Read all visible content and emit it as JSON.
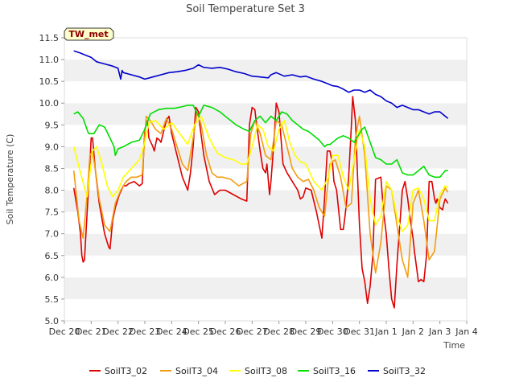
{
  "chart_data": {
    "type": "line",
    "title": "Soil Temperature Set 3",
    "xlabel": "Time",
    "ylabel": "Soil Temperature (C)",
    "tag": "TW_met",
    "ylim": [
      5.0,
      11.5
    ],
    "yticks": [
      "5.0",
      "5.5",
      "6.0",
      "6.5",
      "7.0",
      "7.5",
      "8.0",
      "8.5",
      "9.0",
      "9.5",
      "10.0",
      "10.5",
      "11.0",
      "11.5"
    ],
    "xlim": [
      0,
      15
    ],
    "xtick_labels": [
      "Dec 20",
      "Dec 21",
      "Dec 22",
      "Dec 23",
      "Dec 24",
      "Dec 25",
      "Dec 26",
      "Dec 27",
      "Dec 28",
      "Dec 29",
      "Dec 30",
      "Dec 31",
      "Jan 1",
      "Jan 2",
      "Jan 3",
      "Jan 4"
    ],
    "grid": "horizontal bands",
    "legend_position": "bottom",
    "series": [
      {
        "name": "SoilT3_02",
        "color": "#dd0000",
        "x": [
          0.35,
          0.5,
          0.6,
          0.65,
          0.7,
          0.75,
          0.85,
          0.95,
          1.0,
          1.05,
          1.15,
          1.3,
          1.5,
          1.6,
          1.65,
          1.7,
          1.8,
          1.9,
          2.05,
          2.2,
          2.3,
          2.4,
          2.6,
          2.8,
          2.9,
          3.0,
          3.1,
          3.15,
          3.3,
          3.35,
          3.45,
          3.55,
          3.6,
          3.8,
          3.9,
          4.0,
          4.2,
          4.4,
          4.6,
          4.7,
          4.8,
          4.9,
          5.0,
          5.05,
          5.2,
          5.4,
          5.6,
          5.8,
          5.9,
          6.0,
          6.3,
          6.6,
          6.8,
          6.9,
          7.0,
          7.1,
          7.15,
          7.3,
          7.4,
          7.5,
          7.55,
          7.65,
          7.7,
          7.8,
          7.9,
          8.0,
          8.1,
          8.15,
          8.3,
          8.5,
          8.7,
          8.8,
          8.9,
          9.0,
          9.2,
          9.4,
          9.6,
          9.7,
          9.8,
          9.9,
          10.0,
          10.05,
          10.15,
          10.3,
          10.4,
          10.5,
          10.6,
          10.7,
          10.75,
          10.85,
          10.95,
          11.0,
          11.1,
          11.2,
          11.3,
          11.4,
          11.5,
          11.6,
          11.8,
          11.9,
          12.0,
          12.1,
          12.2,
          12.3,
          12.4,
          12.6,
          12.7,
          12.75,
          12.8,
          12.9,
          13.0,
          13.05,
          13.2,
          13.3,
          13.4,
          13.5,
          13.6,
          13.7,
          13.8,
          13.85,
          13.9,
          14.0,
          14.1,
          14.15,
          14.2,
          14.3
        ],
        "values": [
          8.05,
          7.5,
          7.0,
          6.5,
          6.35,
          6.4,
          7.5,
          8.6,
          9.2,
          9.2,
          8.5,
          7.7,
          7.0,
          6.8,
          6.7,
          6.65,
          7.3,
          7.6,
          7.9,
          8.1,
          8.1,
          8.15,
          8.2,
          8.1,
          8.15,
          9.4,
          9.6,
          9.2,
          9.0,
          8.9,
          9.2,
          9.15,
          9.1,
          9.6,
          9.7,
          9.3,
          8.8,
          8.3,
          8.0,
          8.4,
          9.0,
          9.9,
          9.8,
          9.5,
          8.8,
          8.2,
          7.9,
          8.0,
          8.0,
          8.0,
          7.9,
          7.8,
          7.75,
          9.5,
          9.9,
          9.85,
          9.6,
          8.9,
          8.5,
          8.4,
          8.6,
          7.9,
          8.2,
          9.0,
          10.0,
          9.8,
          9.0,
          8.6,
          8.4,
          8.2,
          8.0,
          7.8,
          7.85,
          8.05,
          8.0,
          7.5,
          6.9,
          7.8,
          8.9,
          8.9,
          8.6,
          8.2,
          8.0,
          7.1,
          7.1,
          7.6,
          8.3,
          9.5,
          10.15,
          9.6,
          8.0,
          7.2,
          6.2,
          5.9,
          5.4,
          5.8,
          6.5,
          8.25,
          8.3,
          7.5,
          7.0,
          6.2,
          5.5,
          5.3,
          6.3,
          8.0,
          8.2,
          8.0,
          7.8,
          7.3,
          6.9,
          6.6,
          5.9,
          5.95,
          5.9,
          6.5,
          8.2,
          8.2,
          7.8,
          7.7,
          7.8,
          7.6,
          7.55,
          7.7,
          7.8,
          7.7
        ]
      },
      {
        "name": "SoilT3_04",
        "color": "#f39c12",
        "x": [
          0.35,
          0.55,
          0.7,
          0.85,
          0.95,
          1.05,
          1.15,
          1.3,
          1.5,
          1.7,
          1.9,
          2.1,
          2.3,
          2.5,
          2.7,
          2.9,
          3.05,
          3.2,
          3.4,
          3.6,
          3.8,
          4.0,
          4.2,
          4.4,
          4.6,
          4.8,
          4.95,
          5.1,
          5.3,
          5.5,
          5.7,
          5.9,
          6.2,
          6.5,
          6.8,
          6.95,
          7.1,
          7.3,
          7.5,
          7.7,
          7.9,
          8.1,
          8.3,
          8.5,
          8.7,
          8.9,
          9.1,
          9.3,
          9.5,
          9.7,
          9.9,
          10.1,
          10.3,
          10.5,
          10.7,
          10.85,
          11.0,
          11.2,
          11.4,
          11.6,
          11.8,
          12.0,
          12.2,
          12.4,
          12.6,
          12.8,
          13.0,
          13.2,
          13.4,
          13.6,
          13.8,
          14.0,
          14.2,
          14.3
        ],
        "values": [
          8.45,
          7.3,
          6.9,
          7.9,
          8.8,
          8.9,
          8.5,
          7.8,
          7.2,
          7.05,
          7.7,
          8.0,
          8.2,
          8.3,
          8.3,
          8.35,
          9.7,
          9.6,
          9.4,
          9.3,
          9.65,
          9.4,
          9.0,
          8.6,
          8.45,
          9.2,
          9.8,
          9.5,
          8.8,
          8.4,
          8.3,
          8.3,
          8.25,
          8.1,
          8.2,
          9.3,
          9.6,
          9.3,
          8.8,
          8.7,
          9.6,
          9.5,
          9.0,
          8.5,
          8.3,
          8.2,
          8.25,
          8.0,
          7.6,
          7.4,
          8.6,
          8.7,
          8.3,
          7.6,
          7.7,
          9.2,
          9.7,
          8.8,
          7.0,
          6.1,
          6.8,
          8.1,
          8.0,
          7.2,
          6.4,
          6.0,
          7.7,
          8.0,
          7.3,
          6.4,
          6.6,
          7.8,
          8.05,
          7.95
        ]
      },
      {
        "name": "SoilT3_08",
        "color": "#ffff00",
        "x": [
          0.35,
          0.6,
          0.85,
          1.05,
          1.2,
          1.4,
          1.6,
          1.8,
          2.0,
          2.2,
          2.5,
          2.8,
          3.0,
          3.15,
          3.4,
          3.7,
          4.0,
          4.3,
          4.6,
          4.85,
          5.1,
          5.4,
          5.7,
          6.0,
          6.3,
          6.6,
          6.8,
          7.0,
          7.2,
          7.4,
          7.6,
          7.8,
          8.0,
          8.2,
          8.4,
          8.6,
          8.8,
          9.0,
          9.3,
          9.6,
          9.85,
          10.0,
          10.2,
          10.4,
          10.6,
          10.8,
          11.0,
          11.2,
          11.4,
          11.6,
          11.8,
          12.0,
          12.2,
          12.4,
          12.6,
          12.8,
          13.0,
          13.2,
          13.4,
          13.6,
          13.8,
          14.0,
          14.2,
          14.3
        ],
        "values": [
          9.0,
          8.4,
          7.85,
          8.9,
          9.0,
          8.6,
          8.1,
          7.85,
          8.0,
          8.3,
          8.5,
          8.7,
          9.1,
          9.55,
          9.6,
          9.4,
          9.55,
          9.3,
          9.05,
          9.5,
          9.7,
          9.2,
          8.85,
          8.75,
          8.7,
          8.6,
          8.6,
          9.0,
          9.5,
          9.4,
          9.0,
          8.9,
          9.4,
          9.6,
          9.1,
          8.8,
          8.65,
          8.6,
          8.2,
          8.0,
          8.3,
          8.8,
          8.8,
          8.3,
          8.0,
          8.7,
          9.4,
          9.0,
          7.8,
          7.2,
          7.4,
          8.2,
          8.0,
          7.4,
          7.05,
          7.2,
          8.0,
          8.05,
          7.8,
          7.3,
          7.3,
          7.9,
          8.1,
          8.05
        ]
      },
      {
        "name": "SoilT3_16",
        "color": "#00dd00",
        "x": [
          0.35,
          0.5,
          0.7,
          0.9,
          1.1,
          1.3,
          1.5,
          1.7,
          1.85,
          1.9,
          2.0,
          2.2,
          2.5,
          2.8,
          3.0,
          3.2,
          3.5,
          3.8,
          4.1,
          4.4,
          4.6,
          4.8,
          5.0,
          5.2,
          5.5,
          5.8,
          6.1,
          6.4,
          6.7,
          6.9,
          7.1,
          7.3,
          7.5,
          7.7,
          7.9,
          8.1,
          8.3,
          8.5,
          8.7,
          8.9,
          9.1,
          9.3,
          9.5,
          9.7,
          9.8,
          9.9,
          10.0,
          10.2,
          10.4,
          10.6,
          10.8,
          11.0,
          11.1,
          11.2,
          11.4,
          11.6,
          11.8,
          12.0,
          12.2,
          12.4,
          12.6,
          12.8,
          13.0,
          13.2,
          13.4,
          13.6,
          13.8,
          14.0,
          14.2,
          14.3
        ],
        "values": [
          9.75,
          9.8,
          9.65,
          9.3,
          9.3,
          9.5,
          9.45,
          9.2,
          9.0,
          8.8,
          8.95,
          9.0,
          9.1,
          9.15,
          9.4,
          9.75,
          9.85,
          9.88,
          9.88,
          9.92,
          9.95,
          9.95,
          9.7,
          9.95,
          9.9,
          9.8,
          9.65,
          9.5,
          9.4,
          9.35,
          9.6,
          9.7,
          9.55,
          9.7,
          9.6,
          9.8,
          9.75,
          9.6,
          9.5,
          9.4,
          9.35,
          9.25,
          9.15,
          9.0,
          9.05,
          9.05,
          9.1,
          9.2,
          9.25,
          9.2,
          9.1,
          9.3,
          9.4,
          9.45,
          9.1,
          8.75,
          8.7,
          8.6,
          8.6,
          8.7,
          8.4,
          8.35,
          8.35,
          8.45,
          8.55,
          8.35,
          8.3,
          8.3,
          8.45,
          8.45
        ]
      },
      {
        "name": "SoilT3_32",
        "color": "#0000cc",
        "x": [
          0.35,
          0.6,
          0.8,
          1.0,
          1.2,
          1.5,
          1.8,
          2.0,
          2.1,
          2.15,
          2.2,
          2.5,
          2.8,
          3.0,
          3.3,
          3.6,
          3.9,
          4.2,
          4.5,
          4.8,
          5.0,
          5.2,
          5.5,
          5.8,
          6.1,
          6.4,
          6.7,
          7.0,
          7.3,
          7.6,
          7.7,
          7.9,
          8.2,
          8.5,
          8.8,
          9.0,
          9.3,
          9.6,
          9.8,
          10.0,
          10.2,
          10.4,
          10.6,
          10.8,
          11.0,
          11.2,
          11.4,
          11.6,
          11.8,
          12.0,
          12.2,
          12.4,
          12.6,
          12.8,
          13.0,
          13.2,
          13.4,
          13.6,
          13.8,
          14.0,
          14.2,
          14.3
        ],
        "values": [
          11.2,
          11.15,
          11.1,
          11.05,
          10.95,
          10.9,
          10.85,
          10.8,
          10.55,
          10.75,
          10.7,
          10.65,
          10.6,
          10.55,
          10.6,
          10.65,
          10.7,
          10.72,
          10.75,
          10.8,
          10.88,
          10.82,
          10.8,
          10.82,
          10.78,
          10.72,
          10.68,
          10.62,
          10.6,
          10.58,
          10.65,
          10.7,
          10.62,
          10.65,
          10.6,
          10.62,
          10.55,
          10.5,
          10.45,
          10.4,
          10.38,
          10.32,
          10.25,
          10.3,
          10.3,
          10.25,
          10.3,
          10.2,
          10.15,
          10.05,
          10.0,
          9.9,
          9.95,
          9.9,
          9.85,
          9.85,
          9.8,
          9.75,
          9.8,
          9.8,
          9.7,
          9.65
        ]
      }
    ]
  }
}
